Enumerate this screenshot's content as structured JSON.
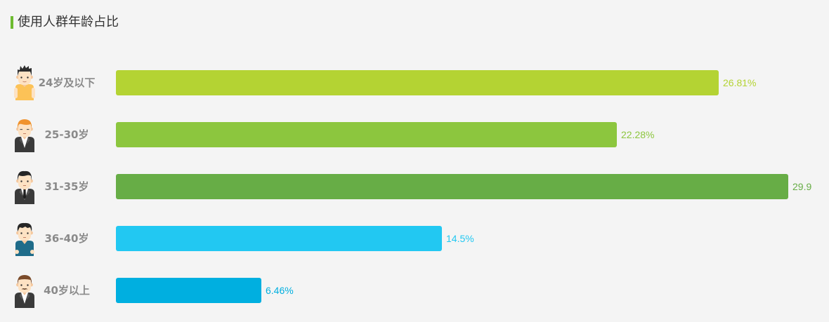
{
  "colors": {
    "accent": "#6dbb30",
    "background": "#f4f4f4",
    "category_label": "#8a8a8a",
    "title": "#333333"
  },
  "chart_data": {
    "type": "bar",
    "orientation": "horizontal",
    "title": "使用人群年龄占比",
    "categories": [
      "24岁及以下",
      "25-30岁",
      "31-35岁",
      "36-40岁",
      "40岁以上"
    ],
    "values": [
      26.81,
      22.28,
      29.9,
      14.5,
      6.46
    ],
    "value_labels": [
      "26.81%",
      "22.28%",
      "29.9",
      "14.5%",
      "6.46%"
    ],
    "colors": [
      "#b4d333",
      "#8cc63e",
      "#67ad46",
      "#22c8f2",
      "#00afe0"
    ],
    "category_icons": [
      "boy-yellow-shirt-icon",
      "orange-hair-man-suit-icon",
      "man-suit-tie-icon",
      "man-teal-shirt-icon",
      "mustache-man-suit-icon"
    ],
    "xlim": [
      0,
      29.9
    ],
    "grid": false,
    "legend": "none"
  }
}
